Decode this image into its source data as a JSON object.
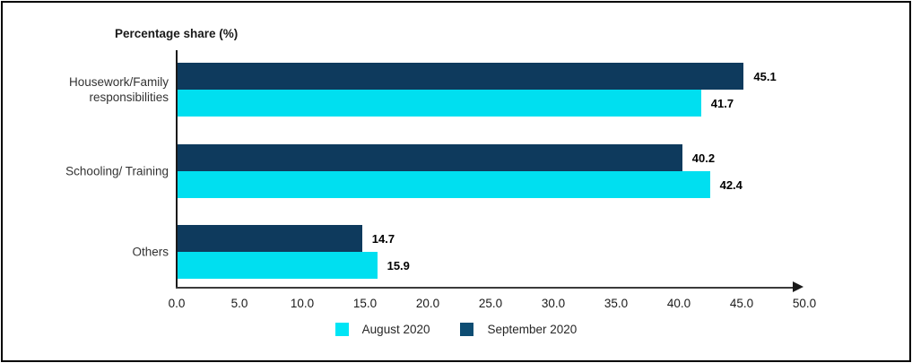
{
  "chart_data": {
    "type": "bar",
    "orientation": "horizontal",
    "title": "Percentage share (%)",
    "categories": [
      "Housework/Family\nresponsibilities",
      "Schooling/ Training",
      "Others"
    ],
    "series": [
      {
        "name": "August 2020",
        "color": "#00dff0",
        "values": [
          41.7,
          42.4,
          15.9
        ],
        "labels": [
          "41.7",
          "42.4",
          "15.9"
        ]
      },
      {
        "name": "September 2020",
        "color": "#0e3a5d",
        "values": [
          45.1,
          40.2,
          14.7
        ],
        "labels": [
          "45.1",
          "40.2",
          "14.7"
        ]
      }
    ],
    "bar_order_top_to_bottom": [
      "September 2020",
      "August 2020"
    ],
    "xlim": [
      0,
      50
    ],
    "x_ticks": [
      "0.0",
      "5.0",
      "10.0",
      "15.0",
      "20.0",
      "25.0",
      "30.0",
      "35.0",
      "40.0",
      "45.0",
      "50.0"
    ],
    "grid": false,
    "legend_position": "bottom",
    "legend_swatch_colors": {
      "August 2020": "#00e5f5",
      "September 2020": "#0e4d73"
    }
  }
}
